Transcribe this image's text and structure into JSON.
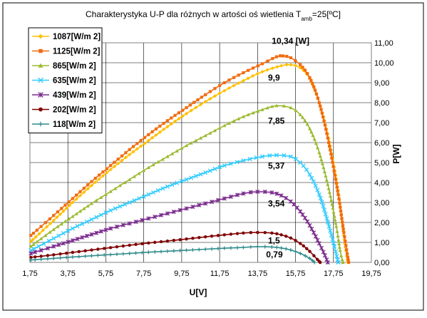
{
  "chart_data": {
    "type": "line",
    "title": {
      "main": "Charakterystyka U-P dla różnych w artości oś wietlenia T",
      "subscript": "amb",
      "suffix": "=25[ºC]"
    },
    "xlabel": "U[V]",
    "ylabel": "P[W]",
    "xlim": [
      1.75,
      19.75
    ],
    "ylim": [
      0,
      11
    ],
    "x_tick_labels": [
      "1,75",
      "3,75",
      "5,75",
      "7,75",
      "9,75",
      "11,75",
      "13,75",
      "15,75",
      "17,75",
      "19,75"
    ],
    "y_tick_labels": [
      "0,00",
      "1,00",
      "2,00",
      "3,00",
      "4,00",
      "5,00",
      "6,00",
      "7,00",
      "8,00",
      "9,00",
      "10,00",
      "11,00"
    ],
    "grid": true,
    "legend_position": "top-left",
    "series": [
      {
        "name": "1087[W/m 2]",
        "color": "#FFC000",
        "marker": "diamond",
        "points": [
          [
            1.8,
            1.05
          ],
          [
            3,
            2.1
          ],
          [
            4,
            3.0
          ],
          [
            5,
            3.85
          ],
          [
            6,
            4.65
          ],
          [
            7,
            5.4
          ],
          [
            8,
            6.1
          ],
          [
            9,
            6.8
          ],
          [
            10,
            7.45
          ],
          [
            11,
            8.05
          ],
          [
            12,
            8.6
          ],
          [
            13,
            9.1
          ],
          [
            14,
            9.55
          ],
          [
            15,
            9.85
          ],
          [
            15.5,
            9.9
          ],
          [
            16,
            9.75
          ],
          [
            16.5,
            9.2
          ],
          [
            17,
            8.0
          ],
          [
            17.5,
            6.2
          ],
          [
            18,
            3.6
          ],
          [
            18.2,
            2.0
          ],
          [
            18.4,
            0.6
          ],
          [
            18.5,
            0.0
          ]
        ]
      },
      {
        "name": "1125[W/m 2]",
        "color": "#F26B0F",
        "marker": "square",
        "points": [
          [
            1.8,
            1.35
          ],
          [
            3,
            2.35
          ],
          [
            4,
            3.2
          ],
          [
            5,
            4.05
          ],
          [
            6,
            4.85
          ],
          [
            7,
            5.65
          ],
          [
            8,
            6.4
          ],
          [
            9,
            7.1
          ],
          [
            10,
            7.75
          ],
          [
            11,
            8.4
          ],
          [
            12,
            9.0
          ],
          [
            13,
            9.5
          ],
          [
            14,
            9.95
          ],
          [
            14.75,
            10.3
          ],
          [
            15.1,
            10.34
          ],
          [
            15.5,
            10.25
          ],
          [
            16,
            9.9
          ],
          [
            16.5,
            9.25
          ],
          [
            17,
            8.0
          ],
          [
            17.5,
            6.0
          ],
          [
            18,
            3.4
          ],
          [
            18.3,
            1.5
          ],
          [
            18.55,
            0.0
          ]
        ]
      },
      {
        "name": "865[W/m 2]",
        "color": "#9BBB30",
        "marker": "triangle",
        "points": [
          [
            1.8,
            0.8
          ],
          [
            3,
            1.65
          ],
          [
            4,
            2.3
          ],
          [
            5,
            2.95
          ],
          [
            6,
            3.55
          ],
          [
            7,
            4.15
          ],
          [
            8,
            4.75
          ],
          [
            9,
            5.3
          ],
          [
            10,
            5.85
          ],
          [
            11,
            6.35
          ],
          [
            12,
            6.85
          ],
          [
            13,
            7.3
          ],
          [
            14,
            7.65
          ],
          [
            14.75,
            7.85
          ],
          [
            15.5,
            7.75
          ],
          [
            16,
            7.4
          ],
          [
            16.5,
            6.7
          ],
          [
            17,
            5.5
          ],
          [
            17.5,
            3.7
          ],
          [
            17.9,
            1.8
          ],
          [
            18.1,
            0.6
          ],
          [
            18.25,
            0.0
          ]
        ]
      },
      {
        "name": "635[W/m 2]",
        "color": "#33CCFF",
        "marker": "x",
        "points": [
          [
            1.8,
            0.6
          ],
          [
            3,
            1.2
          ],
          [
            4,
            1.7
          ],
          [
            5,
            2.15
          ],
          [
            6,
            2.6
          ],
          [
            7,
            3.0
          ],
          [
            8,
            3.4
          ],
          [
            9,
            3.8
          ],
          [
            10,
            4.15
          ],
          [
            11,
            4.5
          ],
          [
            12,
            4.85
          ],
          [
            13,
            5.1
          ],
          [
            14,
            5.3
          ],
          [
            14.75,
            5.37
          ],
          [
            15.5,
            5.3
          ],
          [
            16,
            5.0
          ],
          [
            16.5,
            4.4
          ],
          [
            17,
            3.4
          ],
          [
            17.4,
            2.2
          ],
          [
            17.8,
            0.8
          ],
          [
            18.0,
            0.0
          ]
        ]
      },
      {
        "name": "439[W/m 2]",
        "color": "#7B2D8E",
        "marker": "star",
        "points": [
          [
            1.8,
            0.45
          ],
          [
            3,
            0.8
          ],
          [
            4,
            1.1
          ],
          [
            5,
            1.4
          ],
          [
            6,
            1.7
          ],
          [
            7,
            1.95
          ],
          [
            8,
            2.2
          ],
          [
            9,
            2.45
          ],
          [
            10,
            2.7
          ],
          [
            11,
            2.95
          ],
          [
            12,
            3.2
          ],
          [
            13,
            3.45
          ],
          [
            13.75,
            3.54
          ],
          [
            14.5,
            3.5
          ],
          [
            15,
            3.35
          ],
          [
            15.5,
            3.05
          ],
          [
            16,
            2.55
          ],
          [
            16.5,
            1.85
          ],
          [
            17,
            0.95
          ],
          [
            17.3,
            0.35
          ],
          [
            17.45,
            0.0
          ]
        ]
      },
      {
        "name": "202[W/m 2]",
        "color": "#800000",
        "marker": "circle",
        "points": [
          [
            1.8,
            0.25
          ],
          [
            3,
            0.38
          ],
          [
            4,
            0.5
          ],
          [
            5,
            0.62
          ],
          [
            6,
            0.74
          ],
          [
            7,
            0.86
          ],
          [
            8,
            0.97
          ],
          [
            9,
            1.07
          ],
          [
            10,
            1.17
          ],
          [
            11,
            1.28
          ],
          [
            12,
            1.38
          ],
          [
            13,
            1.47
          ],
          [
            13.75,
            1.5
          ],
          [
            14.5,
            1.47
          ],
          [
            15,
            1.38
          ],
          [
            15.5,
            1.22
          ],
          [
            16,
            0.95
          ],
          [
            16.5,
            0.55
          ],
          [
            16.9,
            0.15
          ],
          [
            17.05,
            0.0
          ]
        ]
      },
      {
        "name": "118[W/m 2]",
        "color": "#2E8B8B",
        "marker": "plus",
        "points": [
          [
            1.8,
            0.12
          ],
          [
            3,
            0.2
          ],
          [
            4,
            0.27
          ],
          [
            5,
            0.33
          ],
          [
            6,
            0.39
          ],
          [
            7,
            0.45
          ],
          [
            8,
            0.51
          ],
          [
            9,
            0.56
          ],
          [
            10,
            0.61
          ],
          [
            11,
            0.66
          ],
          [
            12,
            0.71
          ],
          [
            13,
            0.75
          ],
          [
            13.75,
            0.79
          ],
          [
            14.5,
            0.77
          ],
          [
            15,
            0.72
          ],
          [
            15.5,
            0.62
          ],
          [
            16,
            0.45
          ],
          [
            16.5,
            0.2
          ],
          [
            16.75,
            0.0
          ]
        ]
      }
    ],
    "annotations": [
      {
        "text": "10,34 [W]",
        "x": 14.5,
        "y": 10.95
      },
      {
        "text": "9,9",
        "x": 14.3,
        "y": 9.1
      },
      {
        "text": "7,85",
        "x": 14.3,
        "y": 6.95
      },
      {
        "text": "5,37",
        "x": 14.3,
        "y": 4.7
      },
      {
        "text": "3,54",
        "x": 14.3,
        "y": 2.8
      },
      {
        "text": "1,5",
        "x": 14.3,
        "y": 0.95
      },
      {
        "text": "0,79",
        "x": 14.2,
        "y": 0.25
      }
    ]
  }
}
